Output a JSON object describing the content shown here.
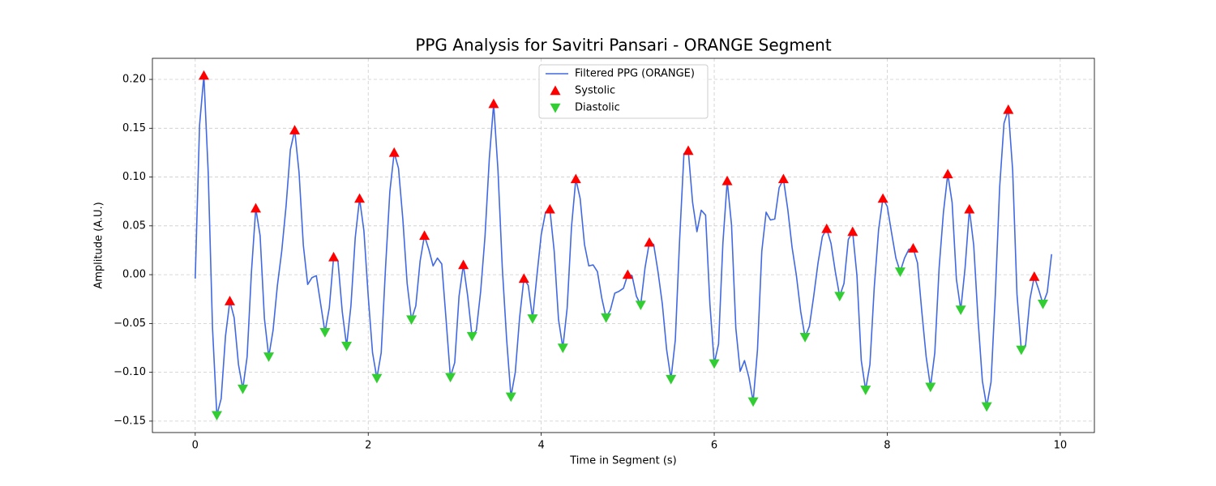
{
  "chart_data": {
    "type": "line",
    "title": "PPG Analysis for Savitri Pansari - ORANGE Segment",
    "x_label": "Time in Segment (s)",
    "y_label": "Amplitude (A.U.)",
    "x": [
      0,
      0.05,
      0.1,
      0.15,
      0.2,
      0.25,
      0.3,
      0.35,
      0.4,
      0.45,
      0.5,
      0.55,
      0.6,
      0.65,
      0.7,
      0.75,
      0.8,
      0.85,
      0.9,
      0.95,
      1,
      1.05,
      1.1,
      1.15,
      1.2,
      1.25,
      1.3,
      1.35,
      1.4,
      1.45,
      1.5,
      1.55,
      1.6,
      1.65,
      1.7,
      1.75,
      1.8,
      1.85,
      1.9,
      1.95,
      2,
      2.05,
      2.1,
      2.15,
      2.2,
      2.25,
      2.3,
      2.35,
      2.4,
      2.45,
      2.5,
      2.55,
      2.6,
      2.65,
      2.7,
      2.75,
      2.8,
      2.85,
      2.9,
      2.95,
      3,
      3.05,
      3.1,
      3.15,
      3.2,
      3.25,
      3.3,
      3.35,
      3.4,
      3.45,
      3.5,
      3.55,
      3.6,
      3.65,
      3.7,
      3.75,
      3.8,
      3.85,
      3.9,
      3.95,
      4,
      4.05,
      4.1,
      4.15,
      4.2,
      4.25,
      4.3,
      4.35,
      4.4,
      4.45,
      4.5,
      4.55,
      4.6,
      4.65,
      4.7,
      4.75,
      4.8,
      4.85,
      4.9,
      4.95,
      5,
      5.05,
      5.1,
      5.15,
      5.2,
      5.25,
      5.3,
      5.35,
      5.4,
      5.45,
      5.5,
      5.55,
      5.6,
      5.65,
      5.7,
      5.75,
      5.8,
      5.85,
      5.9,
      5.95,
      6,
      6.05,
      6.1,
      6.15,
      6.2,
      6.25,
      6.3,
      6.35,
      6.4,
      6.45,
      6.5,
      6.55,
      6.6,
      6.65,
      6.7,
      6.75,
      6.8,
      6.85,
      6.9,
      6.95,
      7,
      7.05,
      7.1,
      7.15,
      7.2,
      7.25,
      7.3,
      7.35,
      7.4,
      7.45,
      7.5,
      7.55,
      7.6,
      7.65,
      7.7,
      7.75,
      7.8,
      7.85,
      7.9,
      7.95,
      8,
      8.05,
      8.1,
      8.15,
      8.2,
      8.25,
      8.3,
      8.35,
      8.4,
      8.45,
      8.5,
      8.55,
      8.6,
      8.65,
      8.7,
      8.75,
      8.8,
      8.85,
      8.9,
      8.95,
      9,
      9.05,
      9.1,
      9.15,
      9.2,
      9.25,
      9.3,
      9.35,
      9.4,
      9.45,
      9.5,
      9.55,
      9.6,
      9.65,
      9.7,
      9.75,
      9.8,
      9.85,
      9.9
    ],
    "series": [
      {
        "name": "Filtered PPG (ORANGE)",
        "color": "#4169e1",
        "values": [
          -0.004,
          0.153,
          0.204,
          0.105,
          -0.055,
          -0.144,
          -0.127,
          -0.063,
          -0.027,
          -0.044,
          -0.092,
          -0.117,
          -0.084,
          0.003,
          0.068,
          0.04,
          -0.045,
          -0.084,
          -0.057,
          -0.011,
          0.024,
          0.07,
          0.128,
          0.148,
          0.105,
          0.03,
          -0.01,
          -0.003,
          -0.001,
          -0.03,
          -0.059,
          -0.034,
          0.018,
          0.014,
          -0.038,
          -0.073,
          -0.032,
          0.038,
          0.078,
          0.045,
          -0.022,
          -0.08,
          -0.106,
          -0.08,
          0.007,
          0.085,
          0.125,
          0.109,
          0.057,
          -0.009,
          -0.046,
          -0.032,
          0.014,
          0.04,
          0.026,
          0.009,
          0.017,
          0.011,
          -0.046,
          -0.105,
          -0.09,
          -0.022,
          0.01,
          -0.022,
          -0.063,
          -0.057,
          -0.017,
          0.039,
          0.119,
          0.175,
          0.107,
          0.007,
          -0.066,
          -0.125,
          -0.1,
          -0.044,
          -0.004,
          -0.011,
          -0.045,
          -0.001,
          0.041,
          0.064,
          0.067,
          0.024,
          -0.046,
          -0.075,
          -0.034,
          0.049,
          0.098,
          0.078,
          0.031,
          0.009,
          0.01,
          0.003,
          -0.024,
          -0.044,
          -0.036,
          -0.019,
          -0.017,
          -0.014,
          0.0,
          -0.001,
          -0.022,
          -0.031,
          0.007,
          0.033,
          0.031,
          0.003,
          -0.03,
          -0.077,
          -0.107,
          -0.067,
          0.036,
          0.124,
          0.127,
          0.074,
          0.044,
          0.066,
          0.061,
          -0.03,
          -0.091,
          -0.071,
          0.032,
          0.096,
          0.051,
          -0.055,
          -0.099,
          -0.088,
          -0.105,
          -0.13,
          -0.077,
          0.024,
          0.064,
          0.056,
          0.057,
          0.089,
          0.098,
          0.067,
          0.028,
          -0.001,
          -0.038,
          -0.064,
          -0.053,
          -0.022,
          0.012,
          0.039,
          0.047,
          0.032,
          0.003,
          -0.022,
          -0.009,
          0.036,
          0.044,
          -0.001,
          -0.088,
          -0.118,
          -0.092,
          -0.013,
          0.046,
          0.078,
          0.07,
          0.043,
          0.017,
          0.003,
          0.017,
          0.026,
          0.027,
          0.012,
          -0.038,
          -0.084,
          -0.115,
          -0.08,
          0.007,
          0.064,
          0.103,
          0.074,
          -0.005,
          -0.036,
          0.007,
          0.067,
          0.03,
          -0.046,
          -0.109,
          -0.135,
          -0.11,
          -0.02,
          0.09,
          0.155,
          0.169,
          0.107,
          -0.02,
          -0.077,
          -0.072,
          -0.025,
          -0.002,
          -0.015,
          -0.03,
          -0.018,
          0.021
        ]
      },
      {
        "name": "Systolic",
        "type": "scatter",
        "marker": "triangle-up",
        "color": "#ff0000",
        "x": [
          0.1,
          0.4,
          0.7,
          1.15,
          1.6,
          1.9,
          2.3,
          2.65,
          3.1,
          3.45,
          3.8,
          4.1,
          4.4,
          5.0,
          5.25,
          5.7,
          6.15,
          6.8,
          7.3,
          7.6,
          7.95,
          8.3,
          8.7,
          8.95,
          9.4,
          9.7
        ],
        "values": [
          0.204,
          -0.027,
          0.068,
          0.148,
          0.018,
          0.078,
          0.125,
          0.04,
          0.01,
          0.175,
          -0.004,
          0.067,
          0.098,
          0.0,
          0.033,
          0.127,
          0.096,
          0.098,
          0.047,
          0.044,
          0.078,
          0.027,
          0.103,
          0.067,
          0.169,
          -0.002
        ]
      },
      {
        "name": "Diastolic",
        "type": "scatter",
        "marker": "triangle-down",
        "color": "#32cd32",
        "x": [
          0.25,
          0.55,
          0.85,
          1.5,
          1.75,
          2.1,
          2.5,
          2.95,
          3.2,
          3.65,
          3.9,
          4.25,
          4.75,
          5.15,
          5.5,
          6.0,
          6.45,
          7.05,
          7.45,
          7.75,
          8.15,
          8.5,
          8.85,
          9.15,
          9.55,
          9.8
        ],
        "values": [
          -0.144,
          -0.117,
          -0.084,
          -0.059,
          -0.073,
          -0.106,
          -0.046,
          -0.105,
          -0.063,
          -0.125,
          -0.045,
          -0.075,
          -0.044,
          -0.031,
          -0.107,
          -0.091,
          -0.13,
          -0.064,
          -0.022,
          -0.118,
          0.003,
          -0.115,
          -0.036,
          -0.135,
          -0.077,
          -0.03
        ]
      }
    ],
    "xlim": [
      -0.495,
      10.395
    ],
    "ylim": [
      -0.1617,
      0.2216
    ],
    "xticks": [
      0,
      2,
      4,
      6,
      8,
      10
    ],
    "yticks": [
      {
        "value": -0.15,
        "label": "−0.15"
      },
      {
        "value": -0.1,
        "label": "−0.10"
      },
      {
        "value": -0.05,
        "label": "−0.05"
      },
      {
        "value": 0,
        "label": "0.00"
      },
      {
        "value": 0.05,
        "label": "0.05"
      },
      {
        "value": 0.1,
        "label": "0.10"
      },
      {
        "value": 0.15,
        "label": "0.15"
      },
      {
        "value": 0.2,
        "label": "0.20"
      }
    ],
    "grid": true,
    "legend": "upper center"
  }
}
